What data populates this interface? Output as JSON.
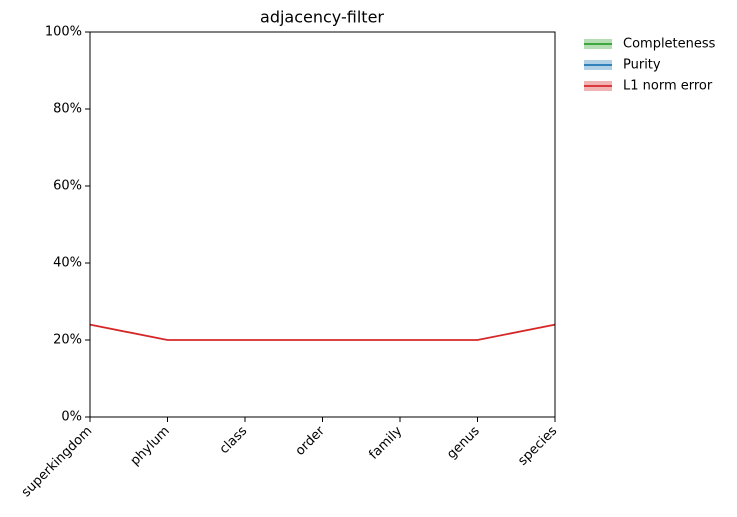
{
  "chart_data": {
    "type": "line",
    "title": "adjacency-filter",
    "categories": [
      "superkingdom",
      "phylum",
      "class",
      "order",
      "family",
      "genus",
      "species"
    ],
    "series": [
      {
        "name": "Completeness",
        "color": "#2ca02c",
        "values": [
          null,
          null,
          null,
          null,
          null,
          null,
          null
        ]
      },
      {
        "name": "Purity",
        "color": "#1f77b4",
        "values": [
          null,
          null,
          null,
          null,
          null,
          null,
          null
        ]
      },
      {
        "name": "L1 norm error",
        "color": "#d62728",
        "values": [
          24,
          20,
          20,
          20,
          20,
          20,
          24
        ]
      }
    ],
    "ylim": [
      0,
      100
    ],
    "yticks": [
      {
        "value": 0,
        "label": "0%"
      },
      {
        "value": 20,
        "label": "20%"
      },
      {
        "value": 40,
        "label": "40%"
      },
      {
        "value": 60,
        "label": "60%"
      },
      {
        "value": 80,
        "label": "80%"
      },
      {
        "value": 100,
        "label": "100%"
      }
    ],
    "grid": false,
    "legend": "right"
  }
}
